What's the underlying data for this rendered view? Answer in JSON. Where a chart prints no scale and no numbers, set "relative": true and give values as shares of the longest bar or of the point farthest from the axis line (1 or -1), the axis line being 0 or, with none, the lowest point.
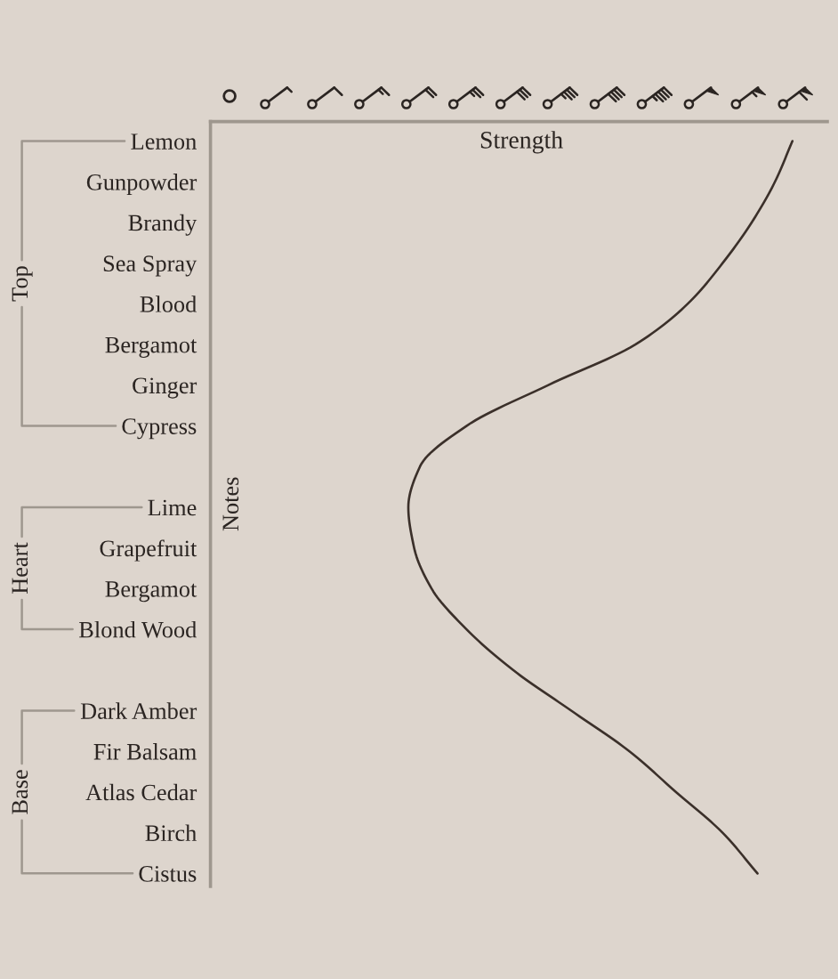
{
  "chart_data": {
    "type": "line",
    "orientation": "horizontal",
    "relative": true,
    "xlabel": "Strength",
    "ylabel": "Notes",
    "categories": [
      "Lemon",
      "Gunpowder",
      "Brandy",
      "Sea Spray",
      "Blood",
      "Bergamot",
      "Ginger",
      "Cypress",
      null,
      "Lime",
      "Grapefruit",
      "Bergamot",
      "Blond Wood",
      null,
      "Dark Amber",
      "Fir Balsam",
      "Atlas Cedar",
      "Birch",
      "Cistus"
    ],
    "series": [
      {
        "color": "#3b302a",
        "values": [
          1,
          0.97,
          0.93,
          0.88,
          0.82,
          0.73,
          0.58,
          0.44,
          0.36,
          0.34,
          0.35,
          0.38,
          0.44,
          0.52,
          0.62,
          0.72,
          0.8,
          0.88,
          0.94
        ]
      }
    ],
    "annotations": [
      "Top",
      "Heart",
      "Base"
    ]
  }
}
